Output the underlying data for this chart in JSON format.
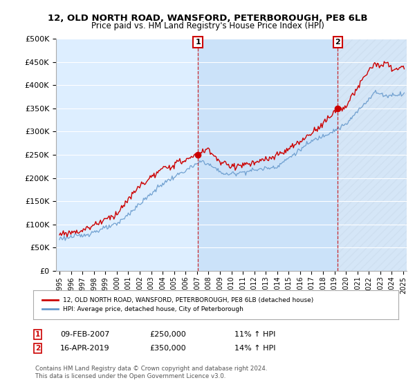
{
  "title": "12, OLD NORTH ROAD, WANSFORD, PETERBOROUGH, PE8 6LB",
  "subtitle": "Price paid vs. HM Land Registry's House Price Index (HPI)",
  "ylim": [
    0,
    500000
  ],
  "yticks": [
    0,
    50000,
    100000,
    150000,
    200000,
    250000,
    300000,
    350000,
    400000,
    450000,
    500000
  ],
  "ytick_labels": [
    "£0",
    "£50K",
    "£100K",
    "£150K",
    "£200K",
    "£250K",
    "£300K",
    "£350K",
    "£400K",
    "£450K",
    "£500K"
  ],
  "fig_bg_color": "#ffffff",
  "plot_bg_color": "#ddeeff",
  "line_color_red": "#cc0000",
  "line_color_blue": "#6699cc",
  "shade_color": "#c8ddf0",
  "grid_color": "#ffffff",
  "purchase1_year": 2007.08,
  "purchase1_price": 250000,
  "purchase1_label": "1",
  "purchase1_date": "09-FEB-2007",
  "purchase1_hpi": "11% ↑ HPI",
  "purchase2_year": 2019.29,
  "purchase2_price": 350000,
  "purchase2_label": "2",
  "purchase2_date": "16-APR-2019",
  "purchase2_hpi": "14% ↑ HPI",
  "legend_entry1": "12, OLD NORTH ROAD, WANSFORD, PETERBOROUGH, PE8 6LB (detached house)",
  "legend_entry2": "HPI: Average price, detached house, City of Peterborough",
  "footnote": "Contains HM Land Registry data © Crown copyright and database right 2024.\nThis data is licensed under the Open Government Licence v3.0.",
  "box_color": "#cc0000",
  "dashed_color": "#cc0000",
  "xlim_left": 1994.7,
  "xlim_right": 2025.3,
  "hatch_color": "#cccccc"
}
